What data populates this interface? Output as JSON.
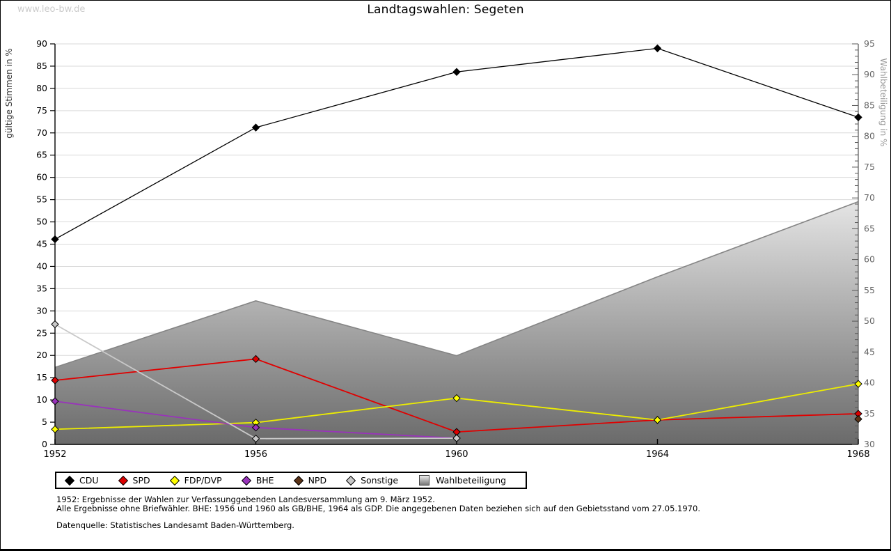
{
  "page": {
    "watermark": "www.leo-bw.de"
  },
  "chart_data": {
    "type": "line",
    "title": "Landtagswahlen: Segeten",
    "categories": [
      1952,
      1956,
      1960,
      1964,
      1968
    ],
    "left_axis": {
      "label": "gültige Stimmen in %",
      "min": 0,
      "max": 90,
      "tick_step": 5
    },
    "right_axis": {
      "label": "Wahlbeteiligung in %",
      "min": 30,
      "max": 95,
      "tick_step": 5,
      "minor_tick_step": 1
    },
    "grid": true,
    "legend_position": "bottom",
    "series": [
      {
        "name": "CDU",
        "axis": "left",
        "color": "#000000",
        "marker_fill": "#000000",
        "values": [
          46.1,
          71.2,
          83.7,
          89.0,
          73.5
        ]
      },
      {
        "name": "SPD",
        "axis": "left",
        "color": "#e00000",
        "marker_fill": "#dd0000",
        "values": [
          14.4,
          19.2,
          2.8,
          5.5,
          6.9
        ]
      },
      {
        "name": "FDP/DVP",
        "axis": "left",
        "color": "#eded00",
        "marker_fill": "#ffff00",
        "values": [
          3.4,
          4.9,
          10.4,
          5.5,
          13.6
        ]
      },
      {
        "name": "BHE",
        "axis": "left",
        "color": "#9933bb",
        "marker_fill": "#9933bb",
        "values": [
          9.7,
          3.8,
          1.4,
          null,
          null
        ]
      },
      {
        "name": "NPD",
        "axis": "left",
        "color": "#5c3317",
        "marker_fill": "#5c3317",
        "values": [
          null,
          null,
          null,
          null,
          5.7
        ]
      },
      {
        "name": "Sonstige",
        "axis": "left",
        "color": "#c8c8c8",
        "marker_fill": "#c8c8c8",
        "values": [
          27.0,
          1.3,
          1.4,
          null,
          null
        ]
      }
    ],
    "area_series": {
      "name": "Wahlbeteiligung",
      "axis": "right",
      "stroke": "#858585",
      "fill_top": "#e6e6e6",
      "fill_bottom": "#696969",
      "values": [
        42.5,
        53.3,
        44.4,
        57.2,
        69.4
      ]
    }
  },
  "notes": {
    "line1": "1952: Ergebnisse der Wahlen zur Verfassunggebenden Landesversammlung am 9. März 1952.",
    "line2": "Alle Ergebnisse ohne Briefwähler. BHE: 1956 und 1960 als GB/BHE, 1964 als GDP. Die angegebenen Daten beziehen sich auf den Gebietsstand vom 27.05.1970.",
    "line3": "Datenquelle: Statistisches Landesamt Baden-Württemberg."
  }
}
